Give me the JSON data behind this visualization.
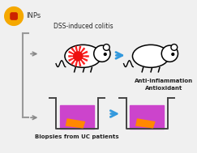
{
  "bg_color": "#f0f0f0",
  "np_circle_color": "#f5a800",
  "np_dot_color": "#cc2200",
  "np_label": "INPs",
  "np_label_color": "#333333",
  "arrow_color": "#3399dd",
  "well_fill_color": "#cc44cc",
  "tissue_color": "#ff8800",
  "label_dss": "DSS-induced colitis",
  "label_anti": "Anti-inflammation\nAntioxidant",
  "label_biopsy": "Biopsies from UC patients",
  "label_color": "#222222"
}
